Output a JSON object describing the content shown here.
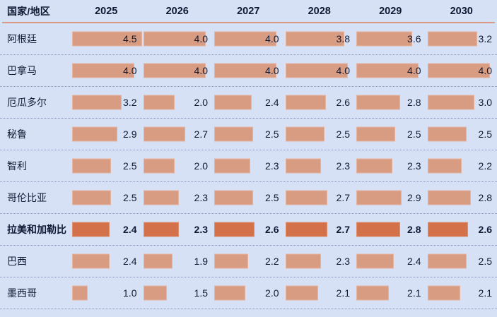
{
  "header": {
    "country_label": "国家/地区",
    "years": [
      "2025",
      "2026",
      "2027",
      "2028",
      "2029",
      "2030"
    ]
  },
  "rows": [
    {
      "country": "阿根廷",
      "values": [
        4.5,
        4.0,
        4.0,
        3.8,
        3.6,
        3.2
      ],
      "highlight": false
    },
    {
      "country": "巴拿马",
      "values": [
        4.0,
        4.0,
        4.0,
        4.0,
        4.0,
        4.0
      ],
      "highlight": false
    },
    {
      "country": "厄瓜多尔",
      "values": [
        3.2,
        2.0,
        2.4,
        2.6,
        2.8,
        3.0
      ],
      "highlight": false
    },
    {
      "country": "秘鲁",
      "values": [
        2.9,
        2.7,
        2.5,
        2.5,
        2.5,
        2.5
      ],
      "highlight": false
    },
    {
      "country": "智利",
      "values": [
        2.5,
        2.0,
        2.3,
        2.3,
        2.3,
        2.2
      ],
      "highlight": false
    },
    {
      "country": "哥伦比亚",
      "values": [
        2.5,
        2.3,
        2.5,
        2.7,
        2.9,
        2.8
      ],
      "highlight": false
    },
    {
      "country": "拉美和加勒比",
      "values": [
        2.4,
        2.3,
        2.6,
        2.7,
        2.8,
        2.6
      ],
      "highlight": true
    },
    {
      "country": "巴西",
      "values": [
        2.4,
        1.9,
        2.2,
        2.3,
        2.4,
        2.5
      ],
      "highlight": false
    },
    {
      "country": "墨西哥",
      "values": [
        1.0,
        1.5,
        2.0,
        2.1,
        2.1,
        2.1
      ],
      "highlight": false
    }
  ],
  "colors": {
    "background": "#d7e1f6",
    "bar": "#d89c83",
    "bar_highlight": "#d3714b",
    "text": "#0f1933",
    "header_rule": "#d89a84",
    "separator": "#8a97b4"
  },
  "chart_data": {
    "type": "bar",
    "title": "",
    "xlabel": "国家/地区",
    "ylabel": "",
    "categories": [
      "2025",
      "2026",
      "2027",
      "2028",
      "2029",
      "2030"
    ],
    "series": [
      {
        "name": "阿根廷",
        "values": [
          4.5,
          4.0,
          4.0,
          3.8,
          3.6,
          3.2
        ]
      },
      {
        "name": "巴拿马",
        "values": [
          4.0,
          4.0,
          4.0,
          4.0,
          4.0,
          4.0
        ]
      },
      {
        "name": "厄瓜多尔",
        "values": [
          3.2,
          2.0,
          2.4,
          2.6,
          2.8,
          3.0
        ]
      },
      {
        "name": "秘鲁",
        "values": [
          2.9,
          2.7,
          2.5,
          2.5,
          2.5,
          2.5
        ]
      },
      {
        "name": "智利",
        "values": [
          2.5,
          2.0,
          2.3,
          2.3,
          2.3,
          2.2
        ]
      },
      {
        "name": "哥伦比亚",
        "values": [
          2.5,
          2.3,
          2.5,
          2.7,
          2.9,
          2.8
        ]
      },
      {
        "name": "拉美和加勒比",
        "values": [
          2.4,
          2.3,
          2.6,
          2.7,
          2.8,
          2.6
        ]
      },
      {
        "name": "巴西",
        "values": [
          2.4,
          1.9,
          2.2,
          2.3,
          2.4,
          2.5
        ]
      },
      {
        "name": "墨西哥",
        "values": [
          1.0,
          1.5,
          2.0,
          2.1,
          2.1,
          2.1
        ]
      }
    ],
    "value_range": [
      0,
      4.5
    ],
    "grid": false,
    "legend_position": "none",
    "layout": "horizontal-data-bars-per-row",
    "highlighted_series": "拉美和加勒比"
  }
}
